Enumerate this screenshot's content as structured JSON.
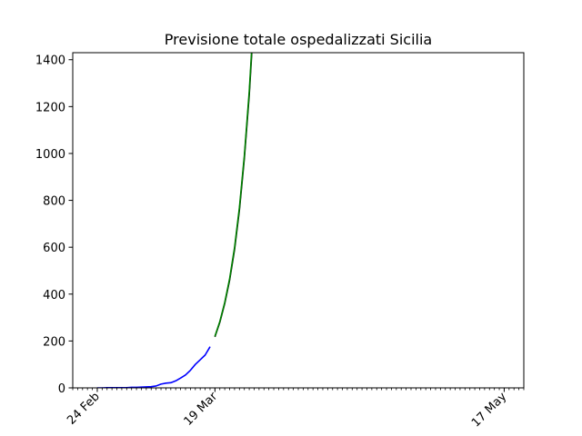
{
  "chart_data": {
    "type": "line",
    "title": "Previsione totale ospedalizzati Sicilia",
    "xlabel": "",
    "ylabel": "",
    "x_axis": {
      "type": "date",
      "start": "2020-02-19",
      "end": "2020-05-21",
      "major_ticks": [
        "2020-02-24",
        "2020-03-19",
        "2020-05-17"
      ],
      "major_tick_labels": [
        "24 Feb",
        "19 Mar",
        "17 May"
      ],
      "minor_ticks": "daily"
    },
    "ylim": [
      0,
      1430
    ],
    "y_ticks": [
      0,
      200,
      400,
      600,
      800,
      1000,
      1200,
      1400
    ],
    "grid": false,
    "series": [
      {
        "color": "#0000ff",
        "points": [
          [
            "2020-02-24",
            0
          ],
          [
            "2020-02-25",
            0
          ],
          [
            "2020-02-26",
            1
          ],
          [
            "2020-02-27",
            1
          ],
          [
            "2020-02-28",
            1
          ],
          [
            "2020-02-29",
            1
          ],
          [
            "2020-03-01",
            1
          ],
          [
            "2020-03-02",
            2
          ],
          [
            "2020-03-03",
            2
          ],
          [
            "2020-03-04",
            3
          ],
          [
            "2020-03-05",
            4
          ],
          [
            "2020-03-06",
            5
          ],
          [
            "2020-03-07",
            8
          ],
          [
            "2020-03-08",
            16
          ],
          [
            "2020-03-09",
            20
          ],
          [
            "2020-03-10",
            22
          ],
          [
            "2020-03-11",
            30
          ],
          [
            "2020-03-12",
            42
          ],
          [
            "2020-03-13",
            55
          ],
          [
            "2020-03-14",
            75
          ],
          [
            "2020-03-15",
            100
          ],
          [
            "2020-03-16",
            120
          ],
          [
            "2020-03-17",
            140
          ],
          [
            "2020-03-18",
            175
          ]
        ]
      },
      {
        "color": "#000000",
        "points": [
          [
            "2020-03-19",
            218
          ],
          [
            "2020-03-20",
            280
          ],
          [
            "2020-03-21",
            360
          ],
          [
            "2020-03-22",
            460
          ],
          [
            "2020-03-23",
            590
          ],
          [
            "2020-03-24",
            760
          ],
          [
            "2020-03-25",
            980
          ],
          [
            "2020-03-26",
            1250
          ],
          [
            "2020-03-27",
            1600
          ]
        ]
      },
      {
        "color": "#008000",
        "points": [
          [
            "2020-03-19",
            220
          ],
          [
            "2020-03-20",
            283
          ],
          [
            "2020-03-21",
            364
          ],
          [
            "2020-03-22",
            466
          ],
          [
            "2020-03-23",
            598
          ],
          [
            "2020-03-24",
            770
          ],
          [
            "2020-03-25",
            990
          ],
          [
            "2020-03-26",
            1265
          ],
          [
            "2020-03-27",
            1620
          ]
        ]
      }
    ]
  }
}
